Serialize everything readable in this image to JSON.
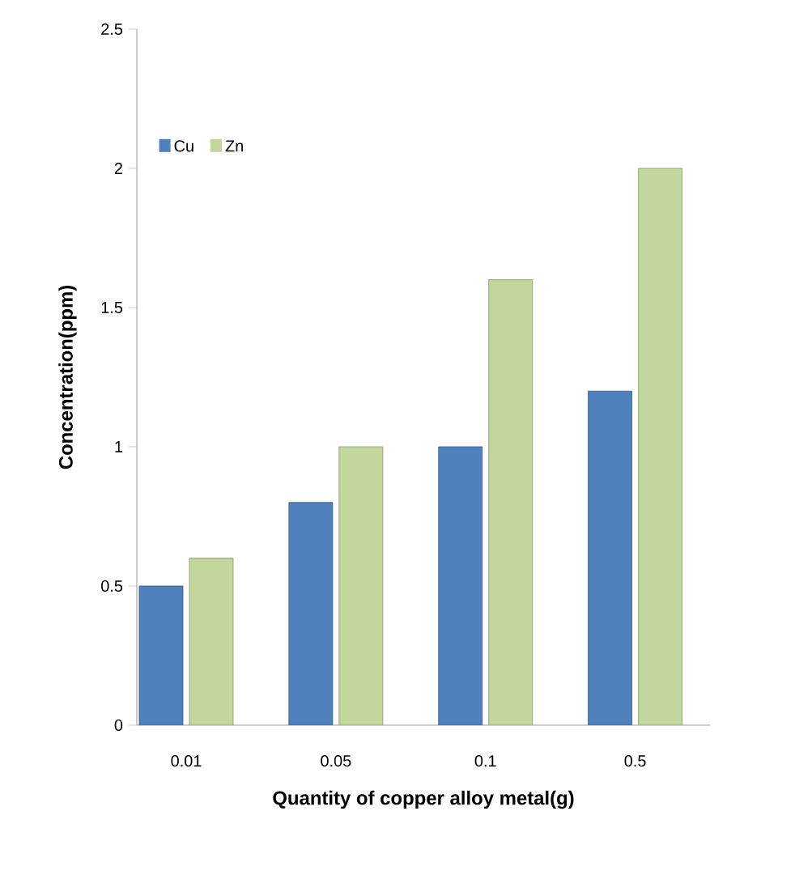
{
  "chart_data": {
    "type": "bar",
    "xlabel": "Quantity of copper alloy metal(g)",
    "ylabel": "Concentration(ppm)",
    "categories": [
      "0.01",
      "0.05",
      "0.1",
      "0.5"
    ],
    "series": [
      {
        "name": "Cu",
        "color": "#4f81bd",
        "values": [
          0.5,
          0.8,
          1.0,
          1.2
        ]
      },
      {
        "name": "Zn",
        "color": "#c3d69b",
        "values": [
          0.6,
          1.0,
          1.6,
          2.0
        ]
      }
    ],
    "ylim": [
      0,
      2.5
    ],
    "yticks": [
      0,
      0.5,
      1,
      1.5,
      2,
      2.5
    ],
    "grid": false,
    "legend": "top left"
  }
}
